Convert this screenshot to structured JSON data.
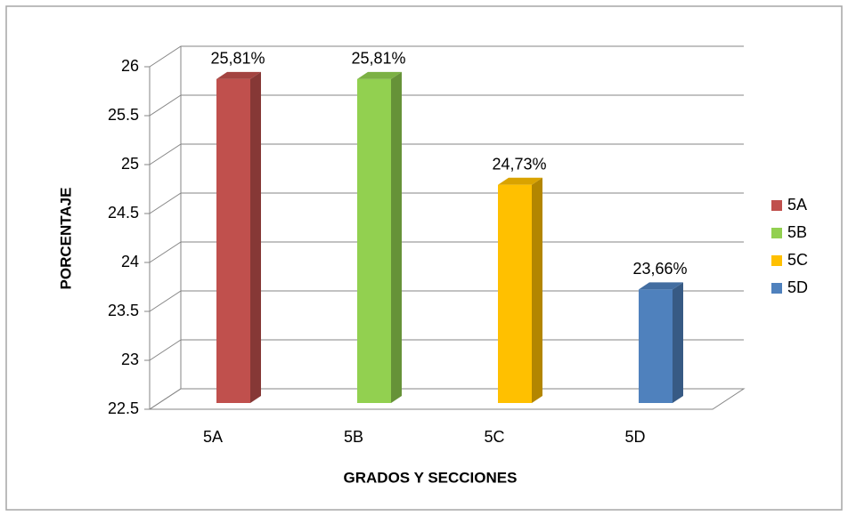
{
  "chart_data": {
    "type": "bar3d",
    "categories": [
      "5A",
      "5B",
      "5C",
      "5D"
    ],
    "values": [
      25.81,
      25.81,
      24.73,
      23.66
    ],
    "value_labels": [
      "25,81%",
      "25,81%",
      "24,73%",
      "23,66%"
    ],
    "colors": [
      "#c0504d",
      "#92d050",
      "#ffc000",
      "#4f81bd"
    ],
    "ylabel": "PORCENTAJE",
    "xlabel": "GRADOS Y SECCIONES",
    "ylim": [
      22.5,
      26
    ],
    "yticks": [
      22.5,
      23,
      23.5,
      24,
      24.5,
      25,
      25.5,
      26
    ],
    "grid": true,
    "legend": "right"
  }
}
